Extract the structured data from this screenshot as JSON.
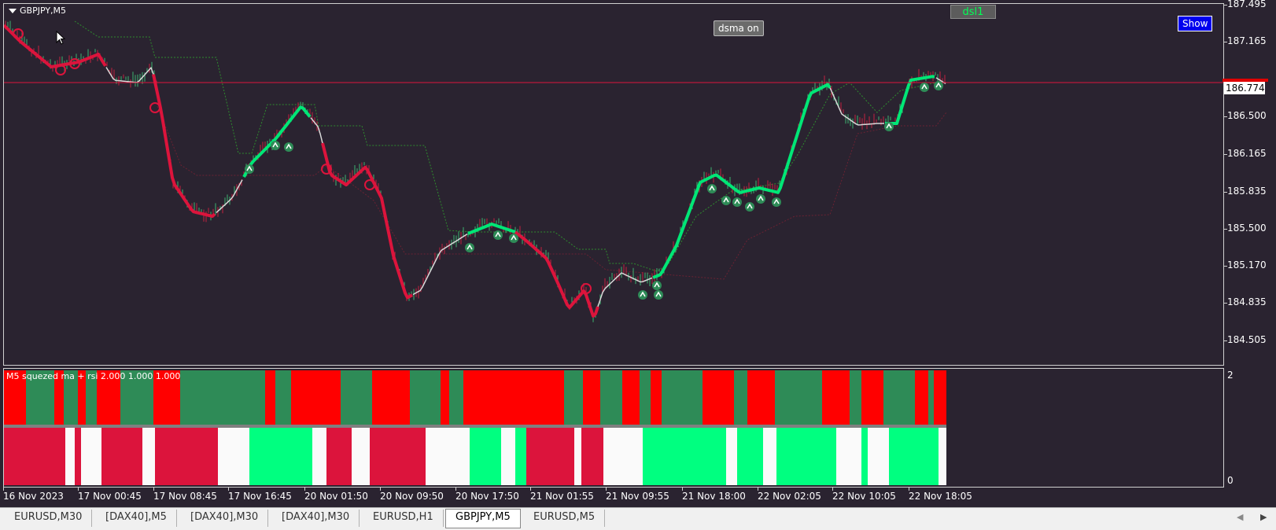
{
  "window": {
    "symbol_title": "GBPJPY,M5",
    "buttons": {
      "dsma": "dsma on",
      "dsl": "dsl1",
      "show": "Show"
    }
  },
  "price_scale": {
    "labels": [
      "187.495",
      "187.165",
      "186.500",
      "186.165",
      "185.835",
      "185.500",
      "185.170",
      "184.835",
      "184.505"
    ],
    "current_price": "186.774",
    "colors": {
      "current_line": "#e00000",
      "label_bg": "#ffffff"
    }
  },
  "indicator": {
    "title": "M5 squezed ma + rsi  2.000  1.000  1.000",
    "scale_labels": [
      "2",
      "0"
    ],
    "colors": {
      "up": "#2e8b57",
      "down": "#ff0000",
      "lower_up": "#00ff80",
      "lower_down": "#dc143c",
      "lower_neutral": "#fafafa",
      "separator": "#808080"
    }
  },
  "time_axis": {
    "labels": [
      "16 Nov 2023",
      "17 Nov 00:45",
      "17 Nov 08:45",
      "17 Nov 16:45",
      "20 Nov 01:50",
      "20 Nov 09:50",
      "20 Nov 17:50",
      "21 Nov 01:55",
      "21 Nov 09:55",
      "21 Nov 18:00",
      "22 Nov 02:05",
      "22 Nov 10:05",
      "22 Nov 18:05"
    ]
  },
  "chart_colors": {
    "background": "#2a2330",
    "bull_line": "#00e676",
    "bear_line": "#dc143c",
    "neutral_line": "#d8d8d8",
    "trail_line": "#2e8b2e",
    "arrow_up": "#2e8b57",
    "arrow_down": "#dc143c"
  },
  "tabs": [
    {
      "label": "EURUSD,M30",
      "active": false
    },
    {
      "label": "[DAX40],M5",
      "active": false
    },
    {
      "label": "[DAX40],M30",
      "active": false
    },
    {
      "label": "[DAX40],M30",
      "active": false
    },
    {
      "label": "EURUSD,H1",
      "active": false
    },
    {
      "label": "GBPJPY,M5",
      "active": true
    },
    {
      "label": "EURUSD,M5",
      "active": false
    }
  ],
  "icons": {
    "dropdown": "triangle-down-icon",
    "cursor": "mouse-pointer-icon",
    "scroll_left": "chevron-left-icon",
    "scroll_right": "chevron-right-icon"
  }
}
